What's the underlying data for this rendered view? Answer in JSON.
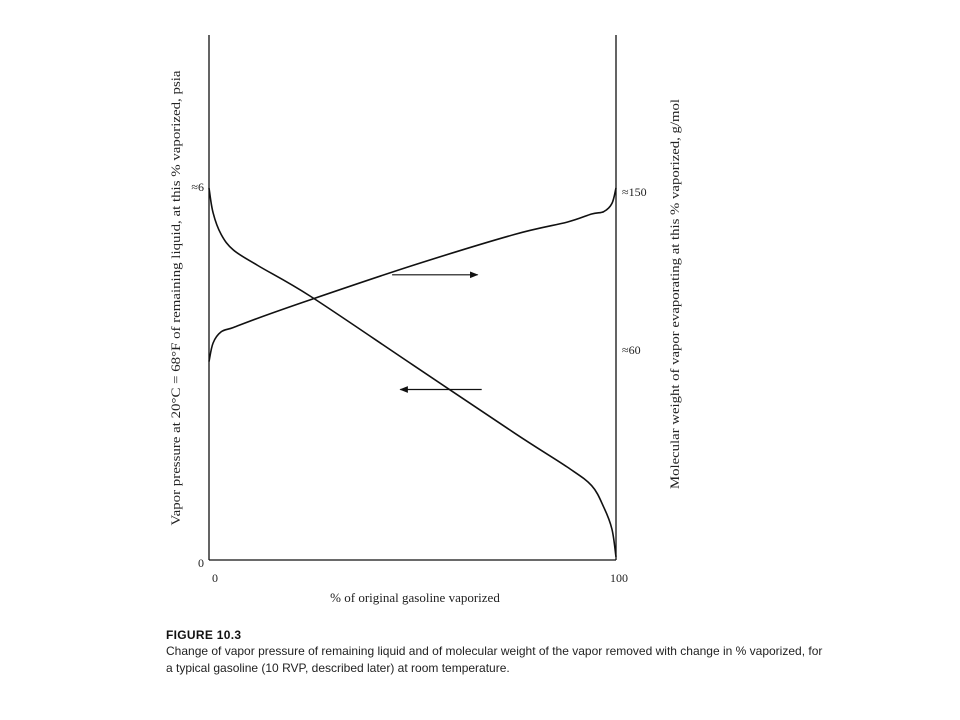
{
  "figure": {
    "label": "FIGURE 10.3",
    "caption": "Change of vapor pressure of remaining liquid and of molecular weight of the vapor removed with change in % vaporized, for a typical gasoline (10 RVP, described later) at room temperature."
  },
  "chart_data": {
    "type": "line",
    "xlabel": "% of original gasoline vaporized",
    "ylabel_left": "Vapor pressure at 20°C = 68°F of remaining liquid, at this % vaporized, psia",
    "ylabel_right": "Molecular weight of vapor evaporating at this % vaporized, g/mol",
    "xlim": [
      0,
      100
    ],
    "x_ticks": [
      "0",
      "100"
    ],
    "left_ticks": [
      "0",
      "≈6"
    ],
    "right_ticks": [
      "≈60",
      "≈150"
    ],
    "ylim_left": [
      0,
      6
    ],
    "grid": false,
    "series": [
      {
        "axis": "left",
        "points": [
          [
            0,
            6.0
          ],
          [
            1,
            5.6
          ],
          [
            3,
            5.25
          ],
          [
            6,
            5.0
          ],
          [
            12,
            4.75
          ],
          [
            25,
            4.25
          ],
          [
            50,
            3.15
          ],
          [
            75,
            2.05
          ],
          [
            88,
            1.5
          ],
          [
            94,
            1.2
          ],
          [
            97,
            0.85
          ],
          [
            99,
            0.5
          ],
          [
            100,
            0.05
          ]
        ]
      },
      {
        "axis": "right",
        "points": [
          [
            0,
            3.2
          ],
          [
            1,
            3.5
          ],
          [
            3,
            3.68
          ],
          [
            6,
            3.75
          ],
          [
            12,
            3.9
          ],
          [
            25,
            4.2
          ],
          [
            50,
            4.75
          ],
          [
            75,
            5.25
          ],
          [
            88,
            5.45
          ],
          [
            94,
            5.58
          ],
          [
            97,
            5.62
          ],
          [
            99,
            5.75
          ],
          [
            100,
            6.0
          ]
        ]
      }
    ],
    "arrows": [
      {
        "direction": "right",
        "x_from": 45,
        "x_to": 66,
        "y": 4.6
      },
      {
        "direction": "left",
        "x_from": 67,
        "x_to": 47,
        "y": 2.75
      }
    ]
  }
}
